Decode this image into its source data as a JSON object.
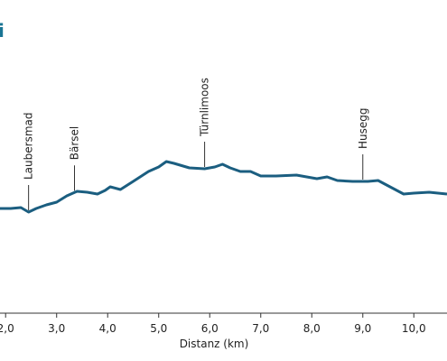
{
  "chart_data": {
    "type": "line",
    "title": "i",
    "xlabel": "Distanz (km)",
    "x": [
      1.89,
      2.1,
      2.3,
      2.45,
      2.6,
      2.8,
      3.0,
      3.2,
      3.4,
      3.6,
      3.8,
      3.95,
      4.05,
      4.25,
      4.5,
      4.8,
      5.0,
      5.15,
      5.3,
      5.6,
      5.9,
      6.1,
      6.25,
      6.4,
      6.6,
      6.8,
      7.0,
      7.3,
      7.7,
      7.9,
      8.1,
      8.3,
      8.5,
      8.8,
      9.1,
      9.3,
      9.5,
      9.8,
      10.0,
      10.3,
      10.65
    ],
    "series": [
      {
        "color": "#1b5e80",
        "values": [
          119,
          119,
          120,
          115,
          119,
          123,
          126,
          133,
          138,
          137,
          135,
          139,
          143,
          140,
          149,
          160,
          165,
          171,
          169,
          164,
          163,
          165,
          168,
          164,
          160,
          160,
          155,
          155,
          156,
          154,
          152,
          154,
          150,
          149,
          149,
          150,
          144,
          135,
          136,
          137,
          135
        ]
      }
    ],
    "annotations": [
      {
        "text": "Laubersmad",
        "x": 2.45
      },
      {
        "text": "Bärsel",
        "x": 3.35
      },
      {
        "text": "Türnlimoos",
        "x": 5.9
      },
      {
        "text": "Husegg",
        "x": 9.0
      }
    ],
    "xlim": [
      1.89,
      10.65
    ],
    "ylim": [
      0,
      350
    ],
    "xticks": [
      {
        "value": 2,
        "label": "2,0"
      },
      {
        "value": 3,
        "label": "3,0"
      },
      {
        "value": 4,
        "label": "4,0"
      },
      {
        "value": 5,
        "label": "5,0"
      },
      {
        "value": 6,
        "label": "6,0"
      },
      {
        "value": 7,
        "label": "7,0"
      },
      {
        "value": 8,
        "label": "8,0"
      },
      {
        "value": 9,
        "label": "9,0"
      },
      {
        "value": 10,
        "label": "10,0"
      }
    ]
  }
}
